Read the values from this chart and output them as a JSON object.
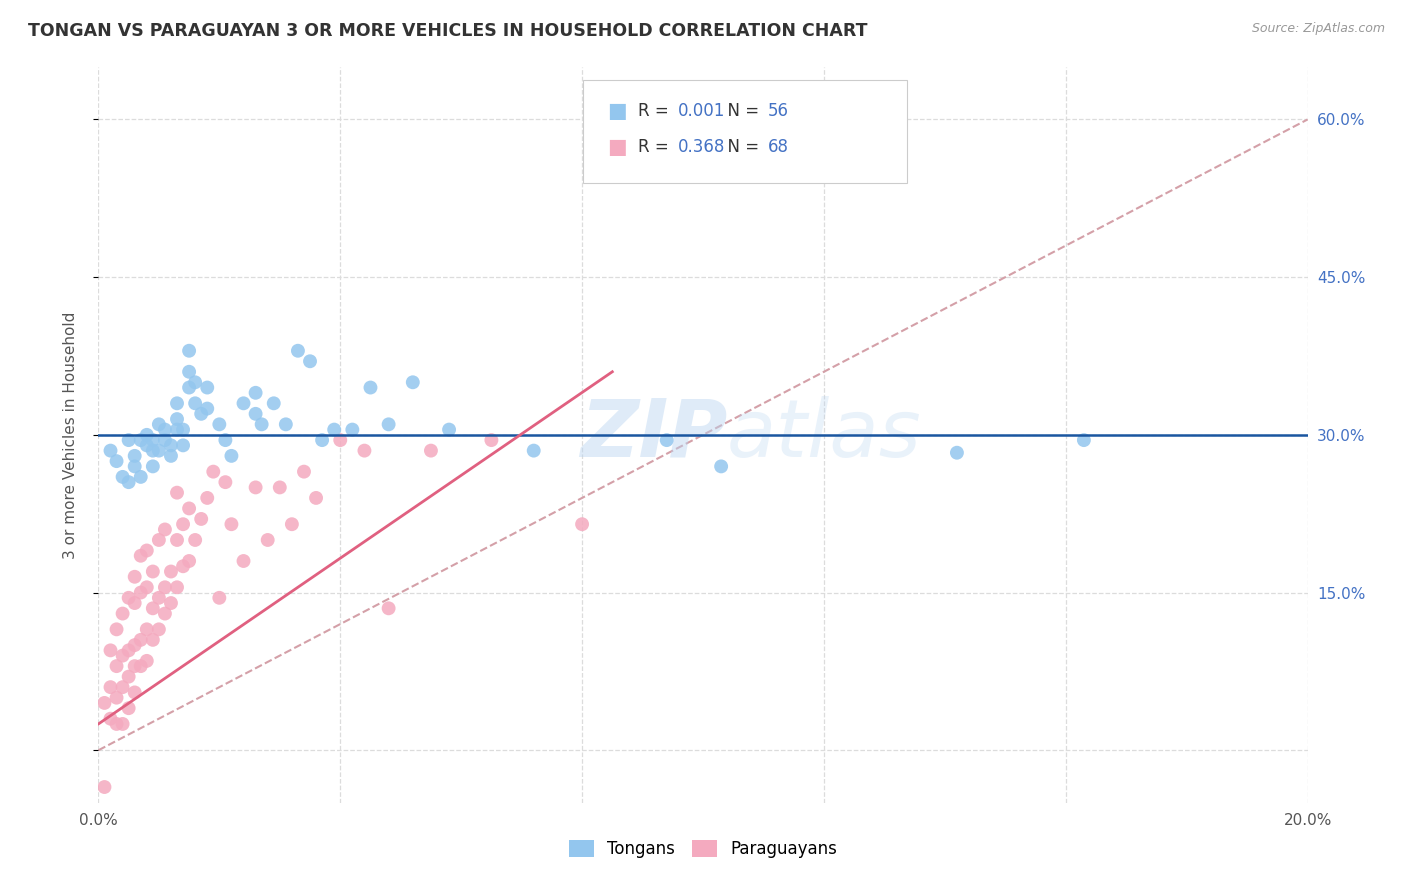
{
  "title": "TONGAN VS PARAGUAYAN 3 OR MORE VEHICLES IN HOUSEHOLD CORRELATION CHART",
  "source": "Source: ZipAtlas.com",
  "ylabel": "3 or more Vehicles in Household",
  "x_min": 0.0,
  "x_max": 0.2,
  "y_min": -0.05,
  "y_max": 0.65,
  "y_ticks": [
    0.0,
    0.15,
    0.3,
    0.45,
    0.6
  ],
  "y_tick_labels_right": [
    "",
    "15.0%",
    "30.0%",
    "45.0%",
    "60.0%"
  ],
  "tongan_color": "#93C6EE",
  "paraguayan_color": "#F4AABF",
  "tongan_R": "0.001",
  "tongan_N": "56",
  "paraguayan_R": "0.368",
  "paraguayan_N": "68",
  "tongan_line_y": 0.3,
  "tongan_line_color": "#1A56A0",
  "paraguayan_line_x0": 0.0,
  "paraguayan_line_y0": 0.025,
  "paraguayan_line_x1": 0.085,
  "paraguayan_line_y1": 0.36,
  "paraguayan_line_color": "#E06080",
  "diag_line_color": "#D4A0A8",
  "watermark": "ZIPatlas",
  "background_color": "#FFFFFF",
  "grid_color": "#DCDCDC",
  "legend_label_1": "Tongans",
  "legend_label_2": "Paraguayans",
  "r_n_color": "#4472C4",
  "tongan_x": [
    0.002,
    0.003,
    0.004,
    0.005,
    0.005,
    0.006,
    0.006,
    0.007,
    0.007,
    0.008,
    0.008,
    0.009,
    0.009,
    0.009,
    0.01,
    0.01,
    0.011,
    0.011,
    0.012,
    0.012,
    0.013,
    0.013,
    0.013,
    0.014,
    0.014,
    0.015,
    0.015,
    0.015,
    0.016,
    0.016,
    0.017,
    0.018,
    0.018,
    0.02,
    0.021,
    0.022,
    0.024,
    0.026,
    0.026,
    0.027,
    0.029,
    0.031,
    0.033,
    0.035,
    0.037,
    0.039,
    0.042,
    0.045,
    0.048,
    0.052,
    0.058,
    0.072,
    0.094,
    0.103,
    0.142,
    0.163
  ],
  "tongan_y": [
    0.285,
    0.275,
    0.26,
    0.255,
    0.295,
    0.27,
    0.28,
    0.26,
    0.295,
    0.29,
    0.3,
    0.27,
    0.285,
    0.295,
    0.285,
    0.31,
    0.295,
    0.305,
    0.29,
    0.28,
    0.315,
    0.305,
    0.33,
    0.29,
    0.305,
    0.345,
    0.36,
    0.38,
    0.33,
    0.35,
    0.32,
    0.325,
    0.345,
    0.31,
    0.295,
    0.28,
    0.33,
    0.34,
    0.32,
    0.31,
    0.33,
    0.31,
    0.38,
    0.37,
    0.295,
    0.305,
    0.305,
    0.345,
    0.31,
    0.35,
    0.305,
    0.285,
    0.295,
    0.27,
    0.283,
    0.295
  ],
  "paraguayan_x": [
    0.001,
    0.001,
    0.002,
    0.002,
    0.002,
    0.003,
    0.003,
    0.003,
    0.003,
    0.004,
    0.004,
    0.004,
    0.004,
    0.005,
    0.005,
    0.005,
    0.005,
    0.006,
    0.006,
    0.006,
    0.006,
    0.006,
    0.007,
    0.007,
    0.007,
    0.007,
    0.008,
    0.008,
    0.008,
    0.008,
    0.009,
    0.009,
    0.009,
    0.01,
    0.01,
    0.01,
    0.011,
    0.011,
    0.011,
    0.012,
    0.012,
    0.013,
    0.013,
    0.013,
    0.014,
    0.014,
    0.015,
    0.015,
    0.016,
    0.017,
    0.018,
    0.019,
    0.02,
    0.021,
    0.022,
    0.024,
    0.026,
    0.028,
    0.03,
    0.032,
    0.034,
    0.036,
    0.04,
    0.044,
    0.048,
    0.055,
    0.065,
    0.08
  ],
  "paraguayan_y": [
    -0.035,
    0.045,
    0.03,
    0.06,
    0.095,
    0.025,
    0.05,
    0.08,
    0.115,
    0.025,
    0.06,
    0.09,
    0.13,
    0.04,
    0.07,
    0.095,
    0.145,
    0.055,
    0.08,
    0.1,
    0.14,
    0.165,
    0.08,
    0.105,
    0.15,
    0.185,
    0.085,
    0.115,
    0.155,
    0.19,
    0.105,
    0.135,
    0.17,
    0.115,
    0.145,
    0.2,
    0.13,
    0.155,
    0.21,
    0.14,
    0.17,
    0.155,
    0.2,
    0.245,
    0.175,
    0.215,
    0.18,
    0.23,
    0.2,
    0.22,
    0.24,
    0.265,
    0.145,
    0.255,
    0.215,
    0.18,
    0.25,
    0.2,
    0.25,
    0.215,
    0.265,
    0.24,
    0.295,
    0.285,
    0.135,
    0.285,
    0.295,
    0.215
  ]
}
